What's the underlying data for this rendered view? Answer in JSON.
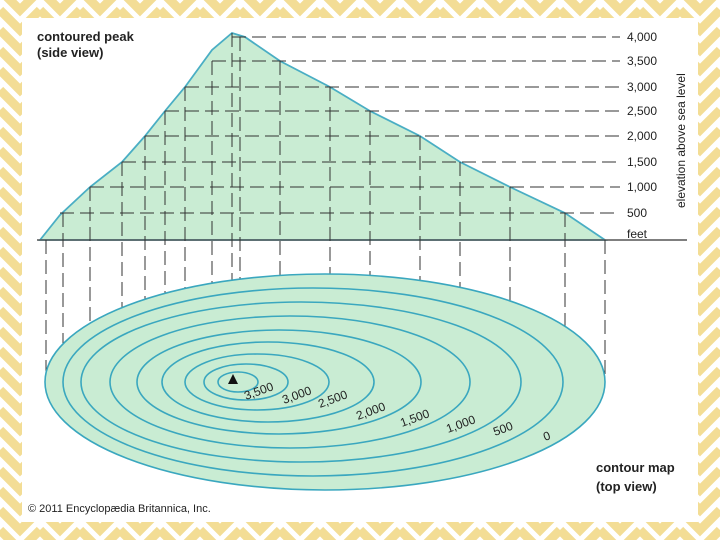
{
  "side_view": {
    "title": [
      "contoured peak",
      "(side view)"
    ],
    "elevation_labels": [
      "4,000",
      "3,500",
      "3,000",
      "2,500",
      "2,000",
      "1,500",
      "1,000",
      "500"
    ],
    "unit": "feet",
    "axis_label": "elevation above sea level"
  },
  "top_view": {
    "contour_labels": [
      "3,500",
      "3,000",
      "2,500",
      "2,000",
      "1,500",
      "1,000",
      "500",
      "0"
    ],
    "title": [
      "contour map",
      "(top view)"
    ]
  },
  "copyright": "© 2011 Encyclopædia Britannica, Inc."
}
